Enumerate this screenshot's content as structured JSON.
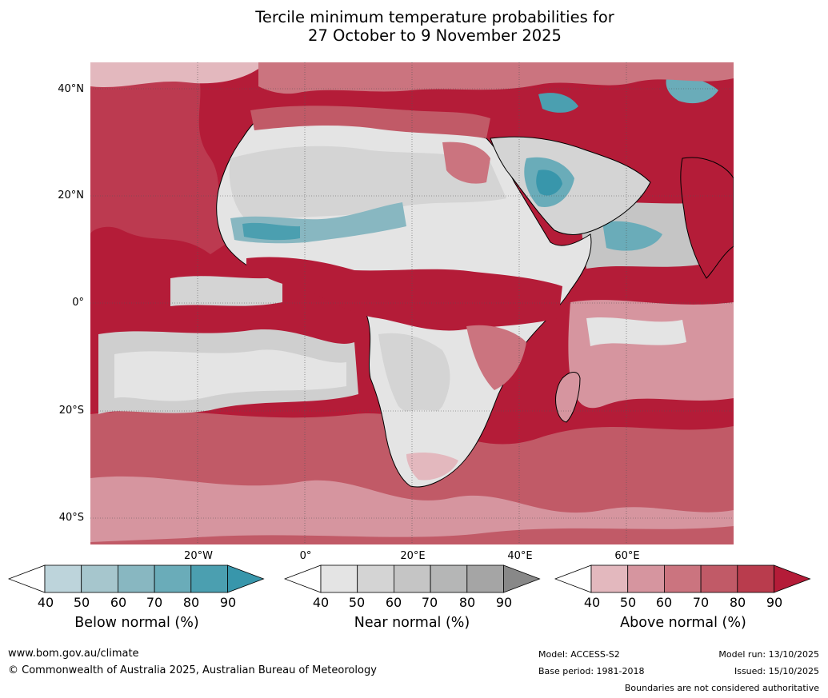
{
  "title": {
    "line1": "Tercile minimum temperature probabilities for",
    "line2": "27 October to 9 November 2025"
  },
  "map": {
    "lat_labels": [
      "40°N",
      "20°N",
      "0°",
      "20°S",
      "40°S"
    ],
    "lon_labels": [
      "20°W",
      "0°",
      "20°E",
      "40°E",
      "60°E"
    ]
  },
  "legends": [
    {
      "title": "Below normal (%)",
      "ticks": [
        "40",
        "50",
        "60",
        "70",
        "80",
        "90"
      ],
      "colors": [
        "#ffffff",
        "#bdd4db",
        "#a6c6cd",
        "#88b7c1",
        "#6aacb9",
        "#4b9fb0",
        "#3896ab"
      ]
    },
    {
      "title": "Near normal (%)",
      "ticks": [
        "40",
        "50",
        "60",
        "70",
        "80",
        "90"
      ],
      "colors": [
        "#ffffff",
        "#e4e4e4",
        "#d4d4d4",
        "#c5c5c5",
        "#b5b6b6",
        "#a5a5a5",
        "#888888"
      ]
    },
    {
      "title": "Above normal (%)",
      "ticks": [
        "40",
        "50",
        "60",
        "70",
        "80",
        "90"
      ],
      "colors": [
        "#ffffff",
        "#e3b8be",
        "#d6959f",
        "#cb747f",
        "#c15a67",
        "#b93c4d",
        "#b41c38"
      ]
    }
  ],
  "footer": {
    "url": "www.bom.gov.au/climate",
    "copyright": "© Commonwealth of Australia 2025, Australian Bureau of Meteorology",
    "model": "Model: ACCESS-S2",
    "base_period": "Base period: 1981-2018",
    "model_run": "Model run: 13/10/2025",
    "issued": "Issued: 15/10/2025",
    "boundaries": "Boundaries are not considered authoritative"
  }
}
